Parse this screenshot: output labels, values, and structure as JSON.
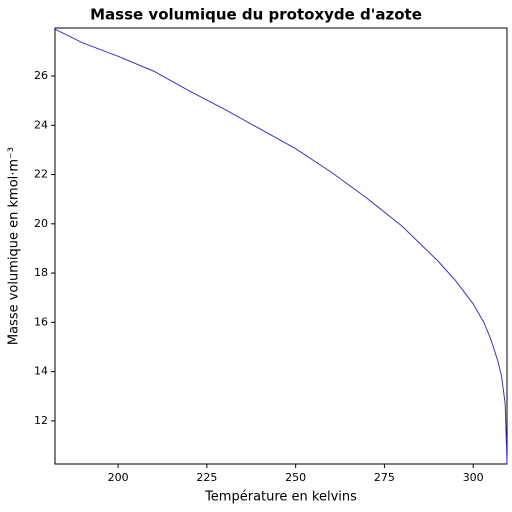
{
  "chart_data": {
    "type": "line",
    "title": "Masse volumique du protoxyde d'azote",
    "xlabel": "Température en kelvins",
    "ylabel": "Masse volumique en kmol·m⁻³",
    "x": [
      182.23,
      190,
      200,
      210,
      220,
      230,
      240,
      250,
      260,
      270,
      280,
      290,
      295,
      300,
      303,
      305,
      307,
      308,
      309,
      309.52
    ],
    "series": [
      {
        "name": "Masse volumique",
        "color": "#3535c8",
        "values": [
          27.9,
          27.35,
          26.8,
          26.2,
          25.4,
          24.65,
          23.85,
          23.05,
          22.1,
          21.05,
          19.9,
          18.5,
          17.7,
          16.75,
          16.0,
          15.3,
          14.4,
          13.8,
          12.7,
          10.27
        ]
      }
    ],
    "xlim": [
      182.23,
      309.52
    ],
    "ylim": [
      10.25,
      27.95
    ],
    "xticks": [
      200,
      225,
      250,
      275,
      300
    ],
    "yticks": [
      12,
      14,
      16,
      18,
      20,
      22,
      24,
      26
    ],
    "grid": false
  }
}
